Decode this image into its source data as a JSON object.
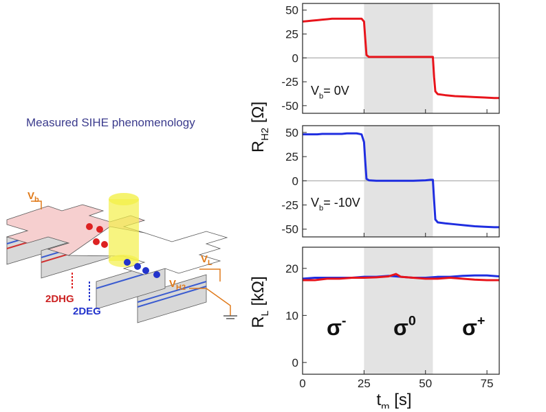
{
  "slide": {
    "caption": "Measured SIHE phenomenology",
    "diagram_labels": [
      {
        "text": "V",
        "sub": "b"
      },
      {
        "text": "V",
        "sub": "L"
      },
      {
        "text": "V",
        "sub": "H2"
      },
      {
        "text": "2DHG"
      },
      {
        "text": "2DEG"
      }
    ]
  },
  "chart_data": [
    {
      "type": "line",
      "ylabel": {
        "text": "R",
        "sub": "H2",
        "rest": " [Ω]"
      },
      "xlim": [
        0,
        80
      ],
      "xticks": [
        0,
        25,
        50,
        75
      ],
      "ylim": [
        -58,
        57
      ],
      "yticks": [
        50,
        25,
        0,
        -25,
        -50
      ],
      "highlight": [
        25,
        53
      ],
      "zero_line": true,
      "annotations": [
        {
          "text": "V",
          "sub": "b",
          "rest": "= 0V"
        }
      ],
      "series": [
        {
          "color": "#e8141b",
          "x": [
            0,
            2,
            4,
            6,
            8,
            10,
            12,
            14,
            16,
            18,
            20,
            22,
            24,
            25,
            25.5,
            26,
            27,
            30,
            35,
            40,
            45,
            50,
            52,
            53,
            53.5,
            54,
            55,
            58,
            62,
            66,
            70,
            74,
            78,
            80
          ],
          "values": [
            38,
            38.5,
            39,
            39.5,
            40,
            40.5,
            41,
            41,
            41,
            41,
            41,
            41,
            41,
            38,
            20,
            3,
            1,
            1,
            1,
            1,
            1,
            1,
            1,
            1,
            -20,
            -35,
            -38,
            -39,
            -40,
            -40.5,
            -41,
            -41.5,
            -42,
            -42
          ]
        }
      ]
    },
    {
      "type": "line",
      "xlim": [
        0,
        80
      ],
      "xticks": [
        0,
        25,
        50,
        75
      ],
      "ylim": [
        -58,
        57
      ],
      "yticks": [
        50,
        25,
        0,
        -25,
        -50
      ],
      "highlight": [
        25,
        53
      ],
      "zero_line": true,
      "annotations": [
        {
          "text": "V",
          "sub": "b",
          "rest": "= -10V"
        }
      ],
      "series": [
        {
          "color": "#1f2ee0",
          "x": [
            0,
            2,
            4,
            6,
            8,
            10,
            12,
            14,
            16,
            18,
            20,
            22,
            24,
            25,
            25.5,
            26,
            27,
            30,
            35,
            40,
            45,
            50,
            52,
            53,
            53.5,
            54,
            55,
            58,
            62,
            66,
            70,
            74,
            78,
            80
          ],
          "values": [
            48,
            48,
            48,
            48,
            48.5,
            48.5,
            48.5,
            48.5,
            48.5,
            49,
            49,
            49,
            48,
            40,
            20,
            2,
            0.5,
            0,
            0,
            0,
            0,
            0.5,
            1,
            1,
            -20,
            -40,
            -43,
            -44,
            -45,
            -46,
            -47,
            -47.5,
            -48,
            -48
          ]
        }
      ]
    },
    {
      "type": "line",
      "ylabel": {
        "text": "R",
        "sub": "L",
        "rest": " [kΩ]"
      },
      "xlabel": {
        "text": "t",
        "sub": "m",
        "rest": " [s]"
      },
      "xlim": [
        0,
        80
      ],
      "xticks": [
        0,
        25,
        50,
        75
      ],
      "ylim": [
        -2.5,
        24.5
      ],
      "yticks": [
        20,
        10,
        0
      ],
      "highlight": [
        25,
        53
      ],
      "annotations": [
        {
          "text": "σ",
          "sup": "-"
        },
        {
          "text": "σ",
          "sup": "0"
        },
        {
          "text": "σ",
          "sup": "+"
        }
      ],
      "series": [
        {
          "color": "#1f2ee0",
          "x": [
            0,
            5,
            10,
            15,
            20,
            25,
            30,
            35,
            38,
            40,
            45,
            50,
            55,
            60,
            65,
            70,
            75,
            80
          ],
          "values": [
            17.8,
            18,
            18,
            18,
            18,
            18.2,
            18.2,
            18.4,
            18.3,
            18.2,
            18,
            18,
            18.2,
            18.2,
            18.4,
            18.5,
            18.5,
            18.3
          ]
        },
        {
          "color": "#e8141b",
          "x": [
            0,
            5,
            10,
            15,
            20,
            25,
            30,
            35,
            38,
            40,
            45,
            50,
            55,
            60,
            65,
            70,
            75,
            80
          ],
          "values": [
            17.5,
            17.5,
            17.8,
            17.8,
            18,
            18,
            18.1,
            18.3,
            18.8,
            18.2,
            18,
            17.8,
            17.8,
            18,
            17.8,
            17.6,
            17.5,
            17.5
          ]
        }
      ]
    }
  ]
}
